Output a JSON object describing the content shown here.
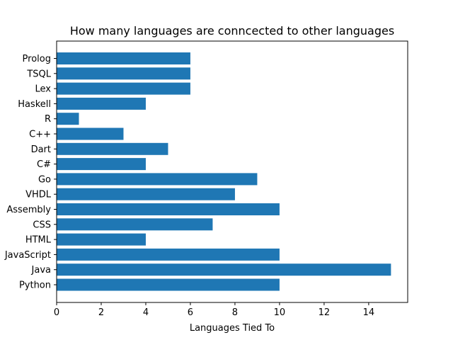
{
  "chart_data": {
    "type": "bar",
    "orientation": "horizontal",
    "title": "How many languages are conncected to other languages",
    "xlabel": "Languages Tied To",
    "ylabel": "",
    "categories": [
      "Python",
      "Java",
      "JavaScript",
      "HTML",
      "CSS",
      "Assembly",
      "VHDL",
      "Go",
      "C#",
      "Dart",
      "C++",
      "R",
      "Haskell",
      "Lex",
      "TSQL",
      "Prolog"
    ],
    "values": [
      10,
      15,
      10,
      4,
      7,
      10,
      8,
      9,
      4,
      5,
      3,
      1,
      4,
      6,
      6,
      6
    ],
    "xlim": [
      0,
      15.75
    ],
    "xticks": [
      0,
      2,
      4,
      6,
      8,
      10,
      12,
      14
    ],
    "bar_color": "#1f77b4",
    "grid": false,
    "legend": "none"
  }
}
